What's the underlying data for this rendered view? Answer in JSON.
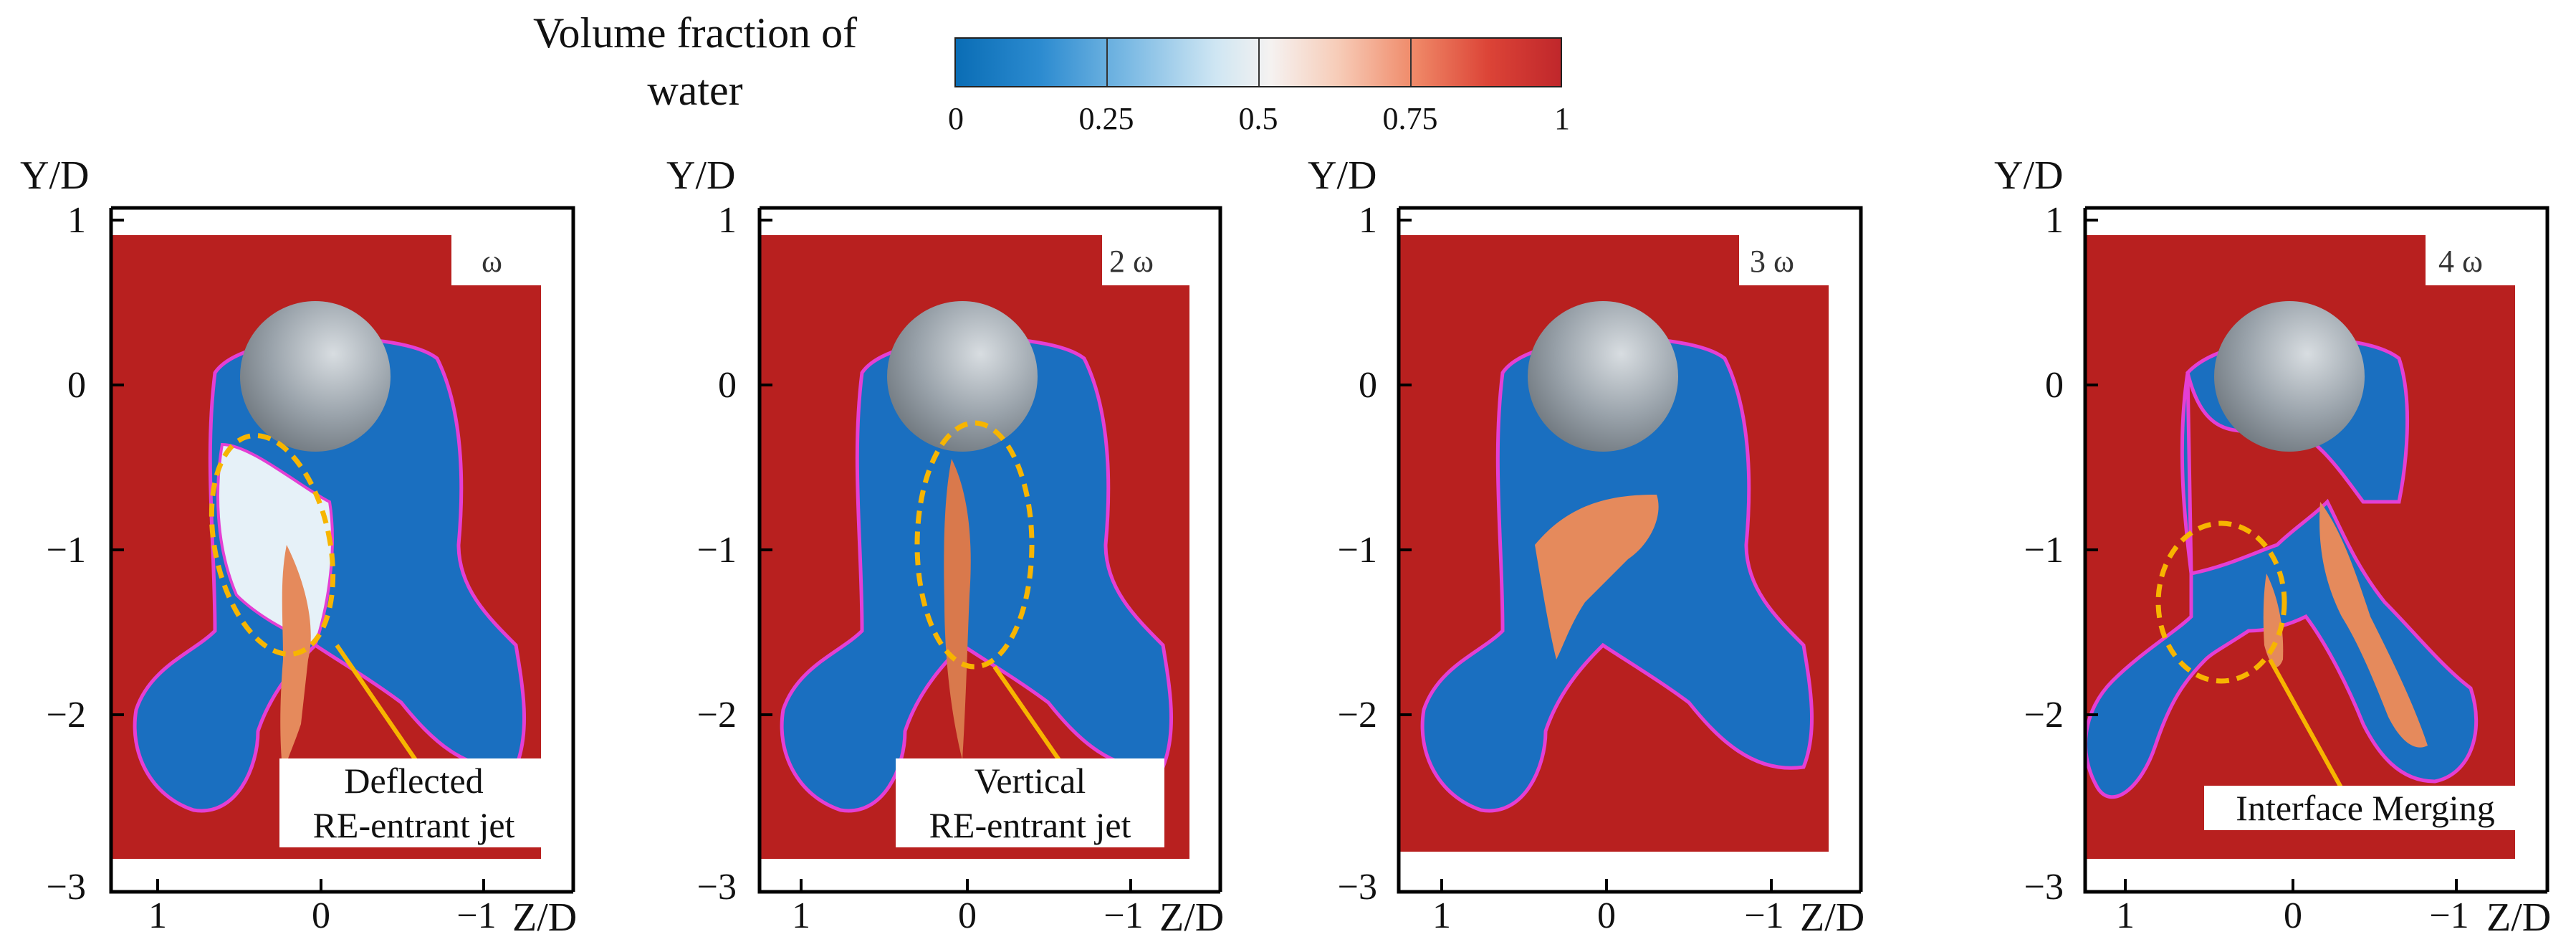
{
  "colorbar": {
    "title_line1": "Volume fraction of",
    "title_line2": "water",
    "ticks": [
      "0",
      "0.25",
      "0.5",
      "0.75",
      "1"
    ]
  },
  "axes": {
    "y_label": "Y/D",
    "x_label": "Z/D",
    "y_ticks": [
      "1",
      "0",
      "−1",
      "−2",
      "−3"
    ],
    "x_ticks": [
      "1",
      "0",
      "−1"
    ]
  },
  "panels": [
    {
      "label": "ω",
      "annotation_line1": "Deflected",
      "annotation_line2": "RE-entrant jet"
    },
    {
      "label": "2 ω",
      "annotation_line1": "Vertical",
      "annotation_line2": "RE-entrant jet"
    },
    {
      "label": "3 ω",
      "annotation_line1": "",
      "annotation_line2": ""
    },
    {
      "label": "4 ω",
      "annotation_line1": "Interface Merging",
      "annotation_line2": ""
    }
  ],
  "colors": {
    "water": "#b8201f",
    "vapor": "#1a6fc0",
    "interface": "#e43fd4",
    "highlight": "#f7b500",
    "sphere": "#9aa3ab"
  }
}
